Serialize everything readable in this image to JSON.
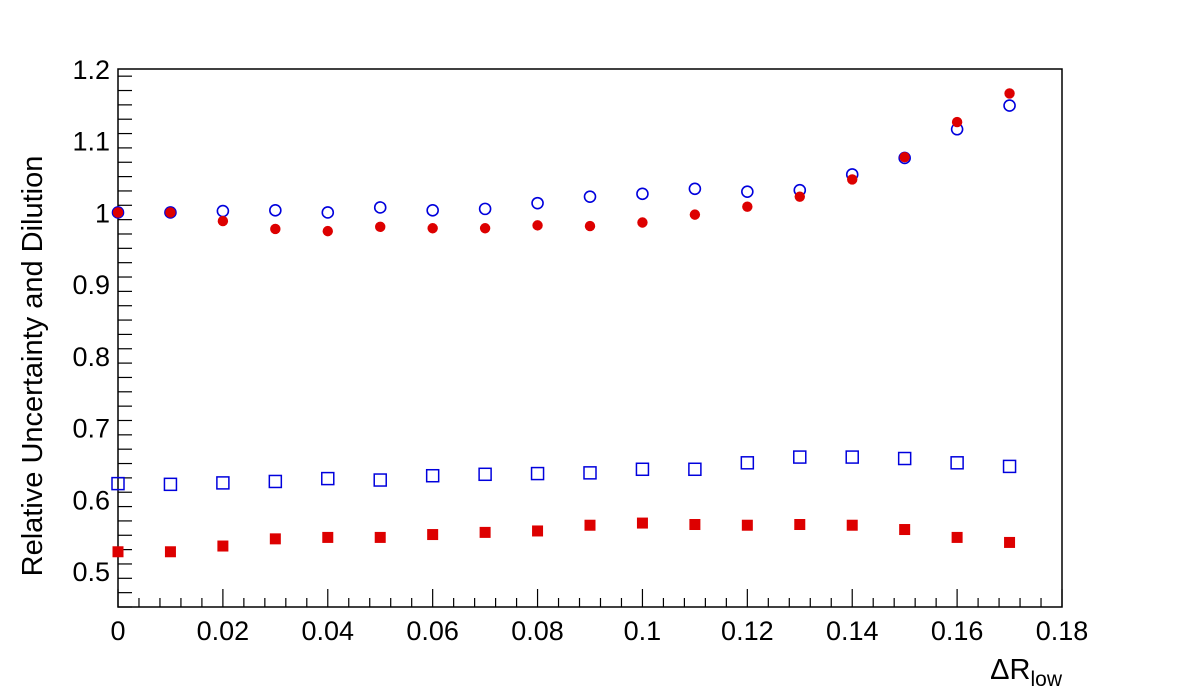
{
  "chart_data": {
    "type": "scatter",
    "title": "",
    "xlabel": "ΔR",
    "xlabel_subscript": "low",
    "ylabel": "Relative Uncertainty and Dilution",
    "xlim": [
      0,
      0.18
    ],
    "ylim": [
      0.45,
      1.2
    ],
    "grid": false,
    "x_ticks": [
      "0",
      "0.02",
      "0.04",
      "0.06",
      "0.08",
      "0.1",
      "0.12",
      "0.14",
      "0.16",
      "0.18"
    ],
    "y_ticks": [
      "0.5",
      "0.6",
      "0.7",
      "0.8",
      "0.9",
      "1",
      "1.1",
      "1.2"
    ],
    "x": [
      0,
      0.01,
      0.02,
      0.03,
      0.04,
      0.05,
      0.06,
      0.07,
      0.08,
      0.09,
      0.1,
      0.11,
      0.12,
      0.13,
      0.14,
      0.15,
      0.16,
      0.17
    ],
    "series": [
      {
        "marker": "open-circle",
        "color": "#0000dd",
        "values": [
          1.0,
          1.0,
          1.002,
          1.003,
          1.0,
          1.007,
          1.003,
          1.005,
          1.013,
          1.022,
          1.026,
          1.033,
          1.029,
          1.031,
          1.053,
          1.076,
          1.116,
          1.149
        ]
      },
      {
        "marker": "filled-circle",
        "color": "#dd0000",
        "values": [
          1.0,
          1.0,
          0.988,
          0.977,
          0.974,
          0.98,
          0.978,
          0.978,
          0.982,
          0.981,
          0.986,
          0.997,
          1.008,
          1.022,
          1.046,
          1.077,
          1.126,
          1.166
        ]
      },
      {
        "marker": "open-square",
        "color": "#0000dd",
        "values": [
          0.622,
          0.621,
          0.623,
          0.625,
          0.629,
          0.627,
          0.633,
          0.635,
          0.636,
          0.637,
          0.642,
          0.642,
          0.651,
          0.659,
          0.659,
          0.657,
          0.651,
          0.646
        ]
      },
      {
        "marker": "filled-square",
        "color": "#dd0000",
        "values": [
          0.527,
          0.527,
          0.535,
          0.545,
          0.547,
          0.547,
          0.551,
          0.554,
          0.556,
          0.564,
          0.567,
          0.565,
          0.564,
          0.565,
          0.564,
          0.558,
          0.547,
          0.54
        ]
      }
    ]
  }
}
